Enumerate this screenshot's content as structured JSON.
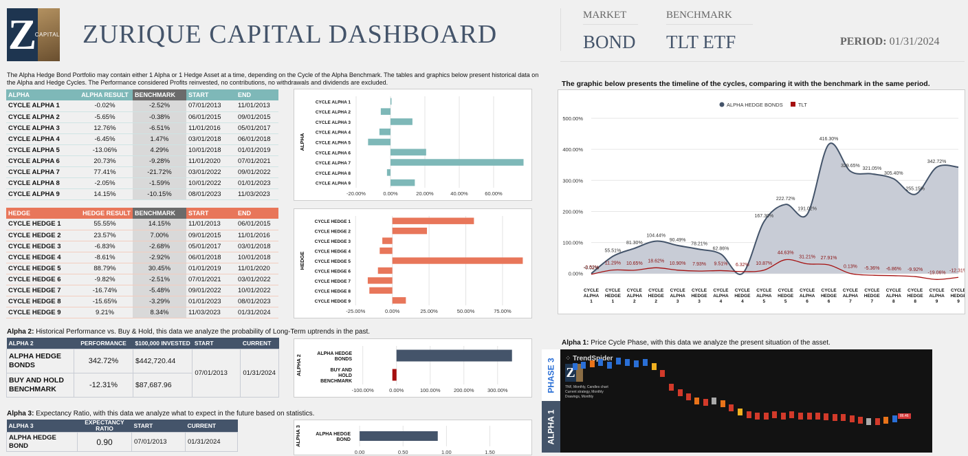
{
  "header": {
    "title": "ZURIQUE CAPITAL DASHBOARD",
    "logo_letter": "Z",
    "logo_text": "CAPITAL",
    "market_label": "MARKET",
    "market_value": "BOND",
    "benchmark_label": "BENCHMARK",
    "benchmark_value": "TLT ETF",
    "period_label": "PERIOD:",
    "period_value": "01/31/2024"
  },
  "intro": "The Alpha Hedge Bond Portfolio may contain either 1 Alpha or 1 Hedge Asset at a time, depending on the Cycle of the Alpha Benchmark. The tables and graphics below present historical data on the Alpha and Hedge Cycles. The Performance considered Profits reinvested, no contributions, no withdrawals and dividends are excluded.",
  "alpha_table": {
    "headers": [
      "ALPHA",
      "ALPHA RESULT",
      "BENCHMARK",
      "START",
      "END"
    ],
    "rows": [
      [
        "CYCLE ALPHA 1",
        "-0.02%",
        "-2.52%",
        "07/01/2013",
        "11/01/2013"
      ],
      [
        "CYCLE ALPHA 2",
        "-5.65%",
        "-0.38%",
        "06/01/2015",
        "09/01/2015"
      ],
      [
        "CYCLE ALPHA 3",
        "12.76%",
        "-6.51%",
        "11/01/2016",
        "05/01/2017"
      ],
      [
        "CYCLE ALPHA 4",
        "-6.45%",
        "1.47%",
        "03/01/2018",
        "06/01/2018"
      ],
      [
        "CYCLE ALPHA 5",
        "-13.06%",
        "4.29%",
        "10/01/2018",
        "01/01/2019"
      ],
      [
        "CYCLE ALPHA 6",
        "20.73%",
        "-9.28%",
        "11/01/2020",
        "07/01/2021"
      ],
      [
        "CYCLE ALPHA 7",
        "77.41%",
        "-21.72%",
        "03/01/2022",
        "09/01/2022"
      ],
      [
        "CYCLE ALPHA 8",
        "-2.05%",
        "-1.59%",
        "10/01/2022",
        "01/01/2023"
      ],
      [
        "CYCLE ALPHA 9",
        "14.15%",
        "-10.15%",
        "08/01/2023",
        "11/03/2023"
      ]
    ]
  },
  "hedge_table": {
    "headers": [
      "HEDGE",
      "HEDGE RESULT",
      "BENCHMARK",
      "START",
      "END"
    ],
    "rows": [
      [
        "CYCLE HEDGE 1",
        "55.55%",
        "14.15%",
        "11/01/2013",
        "06/01/2015"
      ],
      [
        "CYCLE HEDGE 2",
        "23.57%",
        "7.00%",
        "09/01/2015",
        "11/01/2016"
      ],
      [
        "CYCLE HEDGE 3",
        "-6.83%",
        "-2.68%",
        "05/01/2017",
        "03/01/2018"
      ],
      [
        "CYCLE HEDGE 4",
        "-8.61%",
        "-2.92%",
        "06/01/2018",
        "10/01/2018"
      ],
      [
        "CYCLE HEDGE 5",
        "88.79%",
        "30.45%",
        "01/01/2019",
        "11/01/2020"
      ],
      [
        "CYCLE HEDGE 6",
        "-9.82%",
        "-2.51%",
        "07/01/2021",
        "03/01/2022"
      ],
      [
        "CYCLE HEDGE 7",
        "-16.74%",
        "-5.48%",
        "09/01/2022",
        "10/01/2022"
      ],
      [
        "CYCLE HEDGE 8",
        "-15.65%",
        "-3.29%",
        "01/01/2023",
        "08/01/2023"
      ],
      [
        "CYCLE HEDGE 9",
        "9.21%",
        "8.34%",
        "11/03/2023",
        "01/31/2024"
      ]
    ]
  },
  "alpha_chart": {
    "axis_title": "ALPHA",
    "labels": [
      "CYCLE ALPHA 1",
      "CYCLE ALPHA 2",
      "CYCLE ALPHA 3",
      "CYCLE ALPHA 4",
      "CYCLE ALPHA 5",
      "CYCLE ALPHA 6",
      "CYCLE ALPHA 7",
      "CYCLE ALPHA 8",
      "CYCLE ALPHA 9"
    ],
    "values": [
      -0.02,
      -5.65,
      12.76,
      -6.45,
      -13.06,
      20.73,
      77.41,
      -2.05,
      14.15
    ],
    "ticks": [
      "-20.00%",
      "0.00%",
      "20.00%",
      "40.00%",
      "60.00%"
    ],
    "tick_values": [
      -20,
      0,
      20,
      40,
      60
    ],
    "xlim": [
      -22,
      78
    ],
    "color": "#7eb8b8"
  },
  "hedge_chart": {
    "axis_title": "HEDGE",
    "labels": [
      "CYCLE HEDGE 1",
      "CYCLE HEDGE 2",
      "CYCLE HEDGE 3",
      "CYCLE HEDGE 4",
      "CYCLE HEDGE 5",
      "CYCLE HEDGE 6",
      "CYCLE HEDGE 7",
      "CYCLE HEDGE 8",
      "CYCLE HEDGE 9"
    ],
    "values": [
      55.55,
      23.57,
      -6.83,
      -8.61,
      88.79,
      -9.82,
      -16.74,
      -15.65,
      9.21
    ],
    "ticks": [
      "-25.00%",
      "0.00%",
      "25.00%",
      "50.00%",
      "75.00%"
    ],
    "tick_values": [
      -25,
      0,
      25,
      50,
      75
    ],
    "xlim": [
      -27,
      90
    ],
    "color": "#e8765a"
  },
  "alpha2": {
    "caption_bold": "Alpha 2:",
    "caption": " Historical Performance vs. Buy & Hold, this data we analyze the probability of Long-Term uptrends in the past.",
    "headers": [
      "ALPHA 2",
      "PERFORMANCE",
      "$100,000 INVESTED",
      "START",
      "CURRENT"
    ],
    "rows": [
      [
        "ALPHA HEDGE BONDS",
        "342.72%",
        "$442,720.44"
      ],
      [
        "BUY AND HOLD BENCHMARK",
        "-12.31%",
        "$87,687.96"
      ]
    ],
    "start": "07/01/2013",
    "current": "01/31/2024"
  },
  "alpha2_chart": {
    "axis_title": "ALPHA 2",
    "labels": [
      "ALPHA HEDGE BONDS",
      "BUY AND HOLD BENCHMARK"
    ],
    "values": [
      342.72,
      -12.31
    ],
    "ticks": [
      "-100.00%",
      "0.00%",
      "100.00%",
      "200.00%",
      "300.00%"
    ],
    "tick_values": [
      -100,
      0,
      100,
      200,
      300
    ],
    "xlim": [
      -130,
      380
    ],
    "colors": [
      "#44546a",
      "#a50f0f"
    ]
  },
  "alpha3": {
    "caption_bold": "Alpha 3:",
    "caption": " Expectancy Ratio, with this data we analyze what to expect in the future based on statistics.",
    "headers": [
      "ALPHA 3",
      "EXPECTANCY RATIO",
      "START",
      "CURRENT"
    ],
    "rows": [
      [
        "ALPHA HEDGE BOND",
        "0.90",
        "07/01/2013",
        "01/31/2024"
      ]
    ]
  },
  "alpha3_chart": {
    "axis_title": "ALPHA 3",
    "labels": [
      "ALPHA HEDGE BOND"
    ],
    "values": [
      0.9
    ],
    "ticks": [
      "0.00",
      "0.50",
      "1.00",
      "1.50"
    ],
    "tick_values": [
      0,
      0.5,
      1,
      1.5
    ],
    "xlim": [
      -0.08,
      1.9
    ],
    "color": "#44546a"
  },
  "timeline": {
    "caption": "The graphic below presents the timeline of the cycles, comparing it with the benchmark in the same period.",
    "legend": [
      "ALPHA HEDGE BONDS",
      "TLT"
    ],
    "colors": [
      "#44546a",
      "#a50f0f"
    ],
    "yticks": [
      "500.00%",
      "400.00%",
      "300.00%",
      "200.00%",
      "100.00%",
      "0.00%"
    ],
    "ytick_values": [
      500,
      400,
      300,
      200,
      100,
      0
    ],
    "ylim": [
      -25,
      520
    ],
    "categories": [
      "CYCLE ALPHA 1",
      "CYCLE HEDGE 1",
      "CYCLE ALPHA 2",
      "CYCLE HEDGE 2",
      "CYCLE ALPHA 3",
      "CYCLE HEDGE 3",
      "CYCLE ALPHA 4",
      "CYCLE HEDGE 4",
      "CYCLE ALPHA 5",
      "CYCLE HEDGE 5",
      "CYCLE ALPHA 6",
      "CYCLE HEDGE 6",
      "CYCLE ALPHA 7",
      "CYCLE HEDGE 7",
      "CYCLE ALPHA 8",
      "CYCLE HEDGE 8",
      "CYCLE ALPHA 9",
      "CYCLE HEDGE 9"
    ],
    "alpha_labels": [
      "-0.02%",
      "55.51%",
      "81.30%",
      "104.44%",
      "90.49%",
      "78.21%",
      "62.86%",
      "",
      "167.30%",
      "222.72%",
      "191.02%",
      "416.30%",
      "329.65%",
      "321.05%",
      "305.40%",
      "255.15%",
      "342.72%",
      ""
    ],
    "alpha_values": [
      -0.02,
      55.51,
      81.3,
      104.44,
      90.49,
      78.21,
      62.86,
      0,
      167.3,
      222.72,
      191.02,
      416.3,
      329.65,
      321.05,
      305.4,
      255.15,
      342.72,
      342.72
    ],
    "tlt_labels": [
      "-2.52%",
      "11.29%",
      "10.65%",
      "18.62%",
      "10.90%",
      "7.93%",
      "9.51%",
      "6.32%",
      "10.87%",
      "44.63%",
      "31.21%",
      "27.91%",
      "0.13%",
      "-5.36%",
      "-6.86%",
      "-9.92%",
      "-19.06%",
      "-12.31%"
    ],
    "tlt_values": [
      -2.52,
      11.29,
      10.65,
      18.62,
      10.9,
      7.93,
      9.51,
      6.32,
      10.87,
      44.63,
      31.21,
      27.91,
      0.13,
      -5.36,
      -6.86,
      -9.92,
      -19.06,
      -12.31
    ]
  },
  "alpha1": {
    "caption_bold": "Alpha 1:",
    "caption": " Price Cycle Phase, with this data we analyze the present situation of the asset.",
    "phase_tab": "PHASE 3",
    "alpha_tab": "ALPHA 1",
    "ts_brand": "TrendSpider",
    "ts_line1": "TNF, Monthly, Candles chart",
    "ts_line2": "Current strategy, Monthly",
    "ts_line3": "Drawings, Monthly",
    "ts_price": "86.46"
  }
}
